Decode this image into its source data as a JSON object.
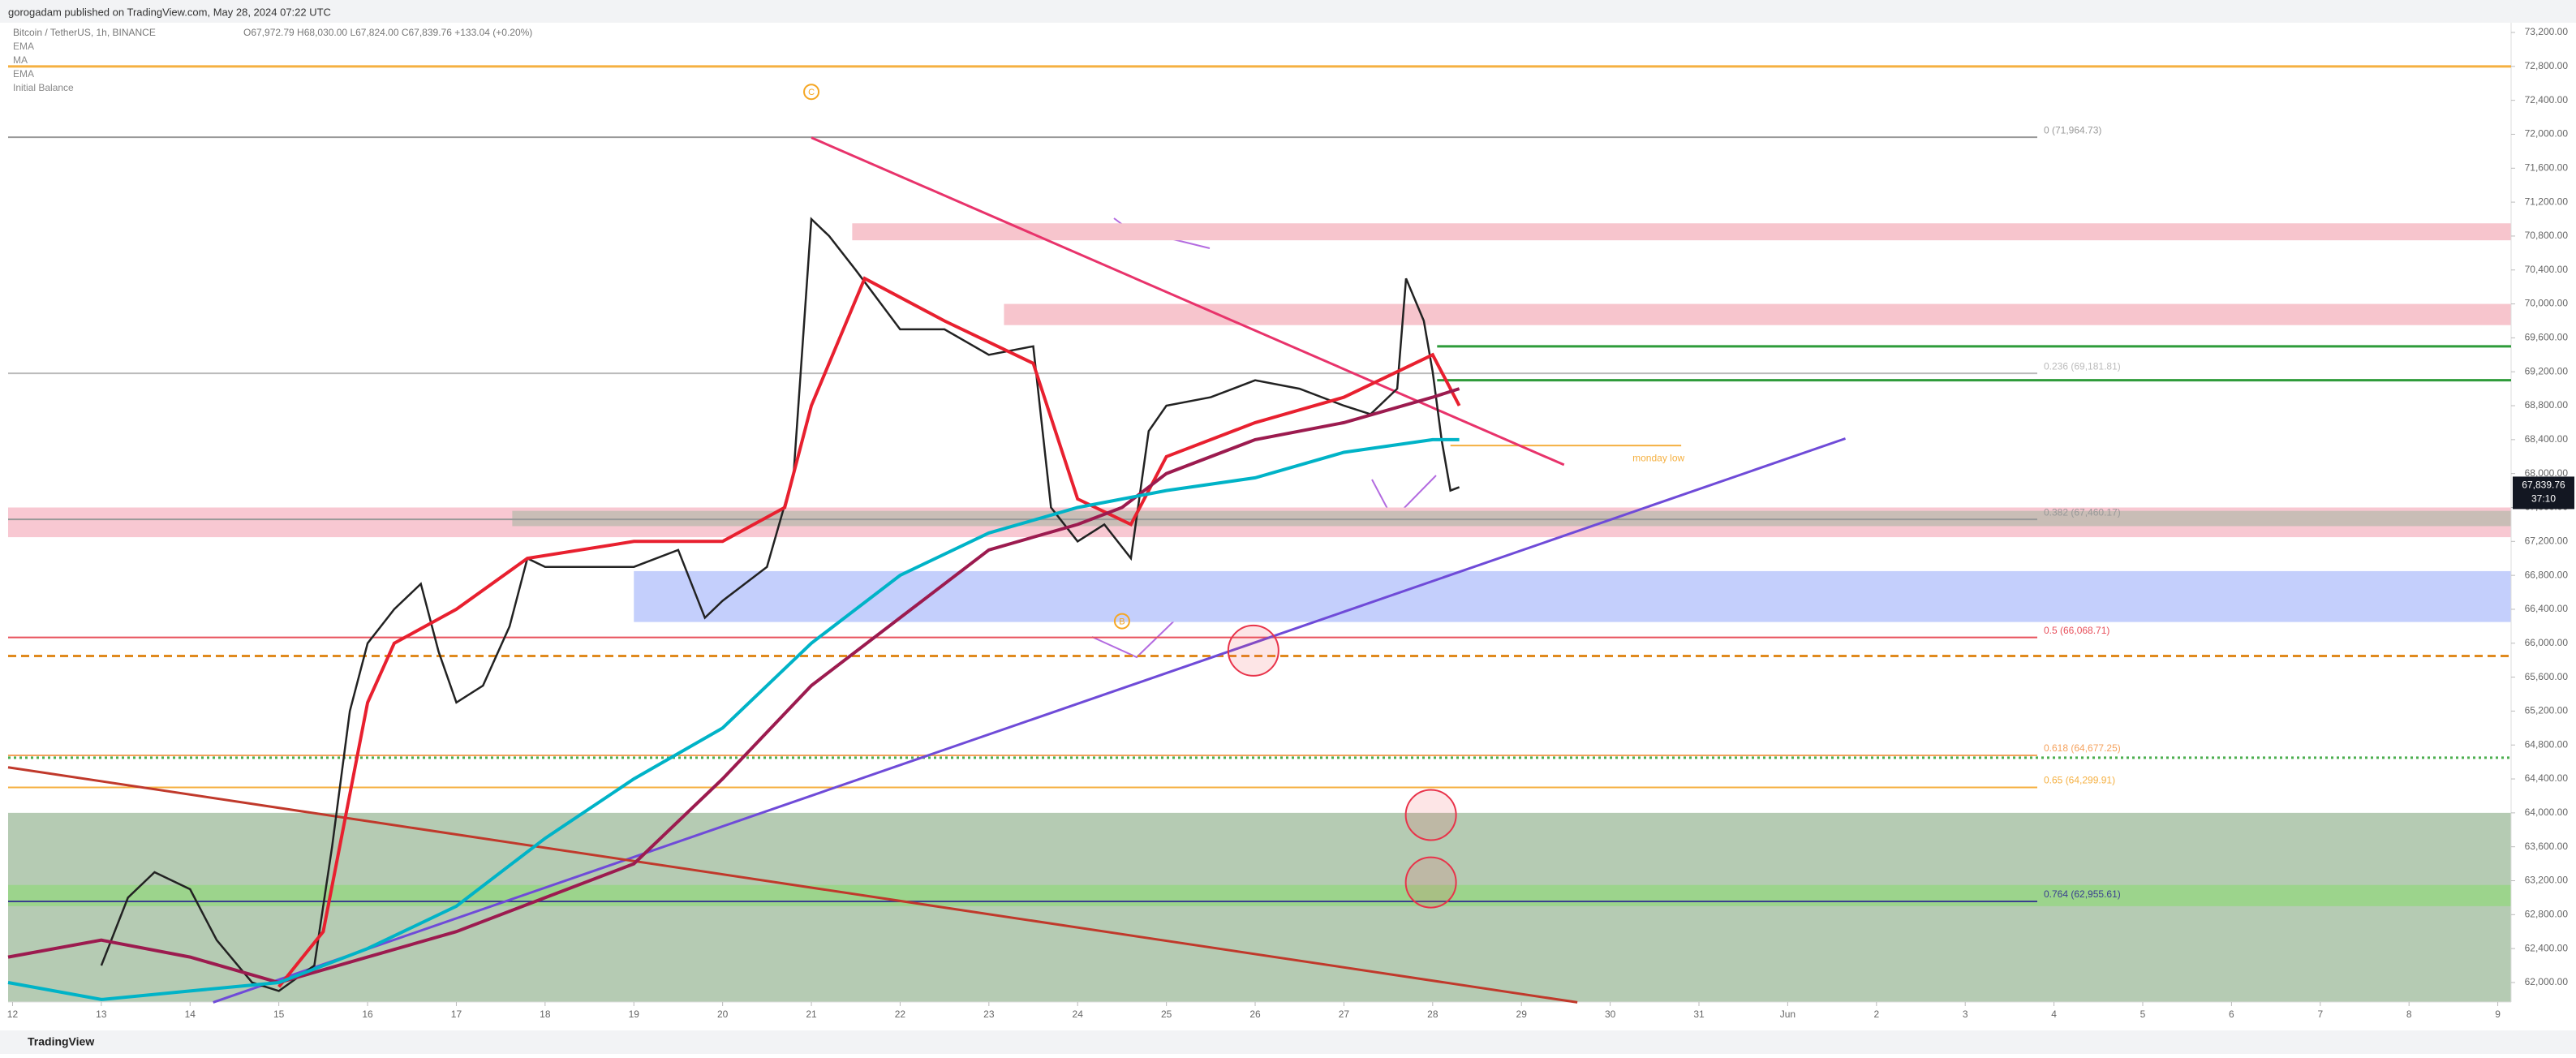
{
  "header": {
    "publisher": "gorogadam published on TradingView.com, May 28, 2024 07:22 UTC",
    "footer": "TradingView"
  },
  "legend": {
    "symbol": "Bitcoin / TetherUS, 1h, BINANCE",
    "ohlc": "O67,972.79 H68,030.00 L67,824.00 C67,839.76 +133.04 (+0.20%)",
    "indicators": [
      "EMA",
      "MA",
      "EMA",
      "Initial Balance"
    ]
  },
  "chart_data": {
    "type": "line",
    "price_label": {
      "value": 67839.76,
      "label": "67,839.76",
      "countdown": "37:10"
    },
    "xlim": [
      11.95,
      40.15
    ],
    "xticks": [
      {
        "value": 12,
        "label": "12"
      },
      13,
      14,
      15,
      16,
      17,
      18,
      19,
      20,
      21,
      22,
      23,
      24,
      25,
      26,
      27,
      28,
      29,
      30,
      31,
      {
        "value": 32,
        "label": "Jun"
      },
      {
        "value": 33,
        "label": "2"
      },
      {
        "value": 34,
        "label": "3"
      },
      {
        "value": 35,
        "label": "4"
      },
      {
        "value": 36,
        "label": "5"
      },
      {
        "value": 37,
        "label": "6"
      },
      {
        "value": 38,
        "label": "7"
      },
      {
        "value": 39,
        "label": "8"
      },
      {
        "value": 40,
        "label": "9"
      }
    ],
    "ylim": [
      61770,
      73315
    ],
    "yticks": [
      {
        "value": 62000,
        "label": "62,000.00"
      },
      {
        "value": 62400,
        "label": "62,400.00"
      },
      {
        "value": 62800,
        "label": "62,800.00"
      },
      {
        "value": 63200,
        "label": "63,200.00"
      },
      {
        "value": 63600,
        "label": "63,600.00"
      },
      {
        "value": 64000,
        "label": "64,000.00"
      },
      {
        "value": 64400,
        "label": "64,400.00"
      },
      {
        "value": 64800,
        "label": "64,800.00"
      },
      {
        "value": 65200,
        "label": "65,200.00"
      },
      {
        "value": 65600,
        "label": "65,600.00"
      },
      {
        "value": 66000,
        "label": "66,000.00"
      },
      {
        "value": 66400,
        "label": "66,400.00"
      },
      {
        "value": 66800,
        "label": "66,800.00"
      },
      {
        "value": 67200,
        "label": "67,200.00"
      },
      {
        "value": 67600,
        "label": "67,600.00"
      },
      {
        "value": 68000,
        "label": "68,000.00"
      },
      {
        "value": 68400,
        "label": "68,400.00"
      },
      {
        "value": 68800,
        "label": "68,800.00"
      },
      {
        "value": 69200,
        "label": "69,200.00"
      },
      {
        "value": 69600,
        "label": "69,600.00"
      },
      {
        "value": 70000,
        "label": "70,000.00"
      },
      {
        "value": 70400,
        "label": "70,400.00"
      },
      {
        "value": 70800,
        "label": "70,800.00"
      },
      {
        "value": 71200,
        "label": "71,200.00"
      },
      {
        "value": 71600,
        "label": "71,600.00"
      },
      {
        "value": 72000,
        "label": "72,000.00"
      },
      {
        "value": 72400,
        "label": "72,400.00"
      },
      {
        "value": 72800,
        "label": "72,800.00"
      },
      {
        "value": 73200,
        "label": "73,200.00"
      }
    ],
    "zones": [
      {
        "x": 11.95,
        "lo": 61770,
        "hi": 64000,
        "color": "#b5cbb3"
      },
      {
        "x": 11.95,
        "lo": 62900,
        "hi": 63150,
        "color": "#9cd48c"
      },
      {
        "x": 19.0,
        "lo": 66250,
        "hi": 66850,
        "color": "#c4cffc"
      },
      {
        "x": 11.95,
        "lo": 67250,
        "hi": 67600,
        "color": "#f8c8d2"
      },
      {
        "x": 17.63,
        "lo": 67380,
        "hi": 67560,
        "color": "#c9bdb6"
      },
      {
        "x": 23.17,
        "lo": 69750,
        "hi": 70000,
        "color": "#f7c5cd"
      },
      {
        "x": 21.46,
        "lo": 70750,
        "hi": 70950,
        "color": "#f7c5cd"
      }
    ],
    "hlines": [
      {
        "value": 72800,
        "color": "#f5b041",
        "style": "solid"
      },
      {
        "value": 65850,
        "color": "#e08a1e",
        "style": "dashed"
      },
      {
        "value": 64650,
        "color": "#4caf50",
        "style": "dotted"
      }
    ],
    "fib": [
      {
        "label": "0 (71,964.73)",
        "value": 71964.73,
        "color": "#999999"
      },
      {
        "label": "0.236 (69,181.81)",
        "value": 69181.81,
        "color": "#bbbbbb"
      },
      {
        "label": "0.382 (67,460.17)",
        "value": 67460.17,
        "color": "#999999"
      },
      {
        "label": "0.5 (66,068.71)",
        "value": 66068.71,
        "color": "#e8505b"
      },
      {
        "label": "0.618 (64,677.25)",
        "value": 64677.25,
        "color": "#f5a25d"
      },
      {
        "label": "0.65 (64,299.91)",
        "value": 64299.91,
        "color": "#f5b041"
      },
      {
        "label": "0.764 (62,955.61)",
        "value": 62955.61,
        "color": "#3a3f8f"
      }
    ],
    "green_lines": {
      "x": 28.05,
      "values": [
        69500,
        69100
      ],
      "color": "#2e9b3a"
    },
    "monday_low": {
      "label": "monday low",
      "x": [
        28.2,
        30.8
      ],
      "value": 68330,
      "color": "#f5b041"
    },
    "trendlines": [
      {
        "x": [
          21.0,
          29.48
        ],
        "values": [
          71960,
          68103
        ],
        "color": "#e8336b"
      },
      {
        "x": [
          14.26,
          32.65
        ],
        "values": [
          61766,
          68413
        ],
        "color": "#6f4bd8"
      },
      {
        "x": [
          11.95,
          29.63
        ],
        "values": [
          64537,
          61766
        ],
        "color": "#c0392b"
      }
    ],
    "circles": {
      "x": [
        25.98,
        27.98,
        27.98
      ],
      "values": [
        65913,
        63975,
        63180
      ]
    },
    "wave_labels": [
      {
        "label": "C",
        "x": 21.0,
        "value": 72500
      },
      {
        "label": "B",
        "x": 24.5,
        "value": 66260
      }
    ],
    "series": [
      {
        "name": "Price",
        "color": "#222222",
        "x": [
          13.0,
          13.3,
          13.6,
          14.0,
          14.3,
          14.7,
          15.0,
          15.4,
          15.6,
          15.8,
          16.0,
          16.3,
          16.6,
          16.8,
          17.0,
          17.3,
          17.6,
          17.8,
          18.0,
          18.5,
          19.0,
          19.5,
          19.8,
          20.0,
          20.5,
          20.8,
          21.0,
          21.2,
          21.5,
          22.0,
          22.5,
          23.0,
          23.5,
          23.7,
          24.0,
          24.3,
          24.6,
          24.8,
          25.0,
          25.5,
          26.0,
          26.5,
          27.0,
          27.3,
          27.6,
          27.7,
          27.9,
          28.0,
          28.1,
          28.2,
          28.3
        ],
        "values": [
          62200,
          63000,
          63300,
          63100,
          62500,
          62000,
          61900,
          62200,
          63600,
          65200,
          66000,
          66400,
          66700,
          65900,
          65300,
          65500,
          66200,
          67000,
          66900,
          66900,
          66900,
          67100,
          66300,
          66500,
          66900,
          68000,
          71000,
          70800,
          70400,
          69700,
          69700,
          69400,
          69500,
          67600,
          67200,
          67400,
          67000,
          68500,
          68800,
          68900,
          69100,
          69000,
          68800,
          68700,
          69000,
          70300,
          69800,
          69200,
          68400,
          67800,
          67840
        ]
      },
      {
        "name": "EMA",
        "color": "#e8202f",
        "x": [
          15.0,
          15.5,
          16.0,
          16.3,
          17.0,
          17.8,
          19.0,
          20.0,
          20.7,
          21.0,
          21.6,
          22.5,
          23.5,
          24.0,
          24.6,
          25.0,
          26.0,
          27.0,
          28.0,
          28.3
        ],
        "values": [
          61950,
          62600,
          65300,
          66000,
          66400,
          67000,
          67200,
          67200,
          67600,
          68800,
          70300,
          69800,
          69300,
          67700,
          67400,
          68200,
          68600,
          68900,
          69400,
          68800
        ]
      },
      {
        "name": "MA",
        "color": "#9c1b4f",
        "x": [
          11.95,
          13.0,
          14.0,
          15.0,
          16.0,
          17.0,
          18.0,
          19.0,
          20.0,
          21.0,
          22.0,
          23.0,
          24.0,
          24.5,
          25.0,
          26.0,
          27.0,
          28.0,
          28.3
        ],
        "values": [
          62300,
          62500,
          62300,
          62000,
          62300,
          62600,
          63000,
          63400,
          64400,
          65500,
          66300,
          67100,
          67400,
          67600,
          68000,
          68400,
          68600,
          68900,
          69000
        ]
      },
      {
        "name": "EMA",
        "color": "#00b3c7",
        "x": [
          11.95,
          13.0,
          14.0,
          15.0,
          16.0,
          17.0,
          18.0,
          19.0,
          20.0,
          21.0,
          22.0,
          23.0,
          24.0,
          25.0,
          26.0,
          27.0,
          28.0,
          28.3
        ],
        "values": [
          62000,
          61800,
          61900,
          62000,
          62400,
          62900,
          63700,
          64400,
          65000,
          66000,
          66800,
          67300,
          67600,
          67800,
          67950,
          68250,
          68400,
          68400
        ]
      }
    ]
  }
}
